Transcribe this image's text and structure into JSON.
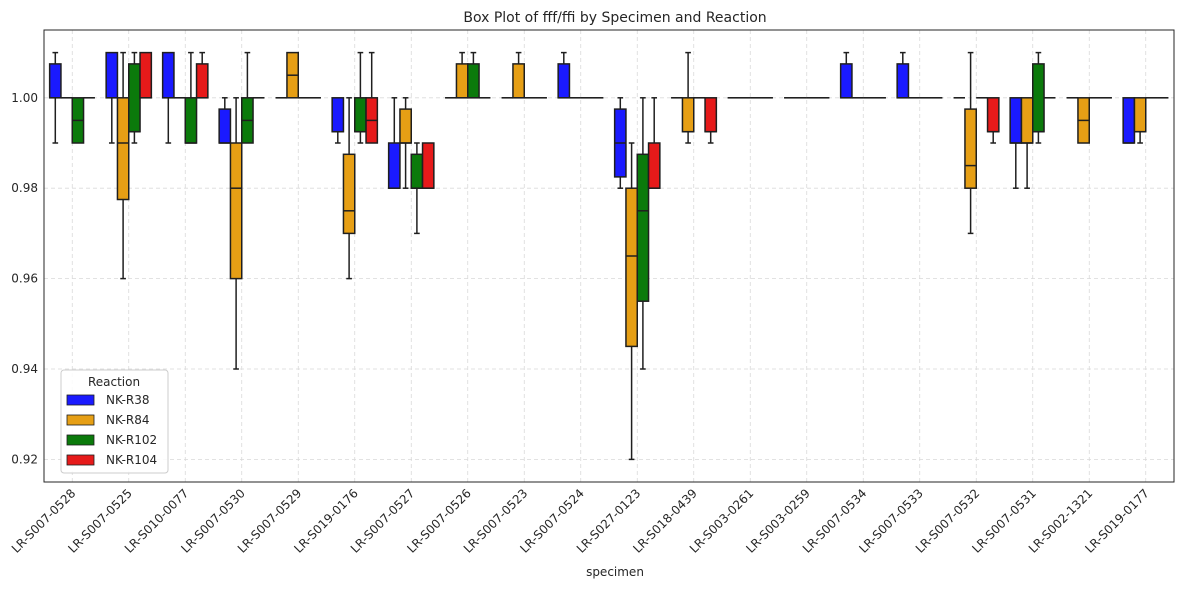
{
  "chart_data": {
    "type": "box",
    "title": "Box Plot of fff/ffi by Specimen and Reaction",
    "xlabel": "specimen",
    "ylabel": "",
    "ylim": [
      0.915,
      1.015
    ],
    "yticks": [
      0.92,
      0.94,
      0.96,
      0.98,
      1.0
    ],
    "ytick_labels": [
      "0.92",
      "0.94",
      "0.96",
      "0.98",
      "1.00"
    ],
    "grid": true,
    "legend": {
      "title": "Reaction",
      "placement": "lower-left"
    },
    "categories": [
      "LR-S007-0528",
      "LR-S007-0525",
      "LR-S010-0077",
      "LR-S007-0530",
      "LR-S007-0529",
      "LR-S019-0176",
      "LR-S007-0527",
      "LR-S007-0526",
      "LR-S007-0523",
      "LR-S007-0524",
      "LR-S027-0123",
      "LR-S018-0439",
      "LR-S003-0261",
      "LR-S003-0259",
      "LR-S007-0534",
      "LR-S007-0533",
      "LR-S007-0532",
      "LR-S007-0531",
      "LR-S002-1321",
      "LR-S019-0177"
    ],
    "series": [
      {
        "name": "NK-R38",
        "color": "#1a1aff",
        "boxes": [
          [
            0.99,
            1.0,
            1.0,
            1.0075,
            1.01
          ],
          [
            0.99,
            1.0,
            1.0,
            1.01,
            1.01
          ],
          [
            0.99,
            1.0,
            1.0,
            1.01,
            1.01
          ],
          [
            0.99,
            0.99,
            0.99,
            0.9975,
            1.0
          ],
          [
            1.0,
            1.0,
            1.0,
            1.0,
            1.0
          ],
          [
            0.99,
            0.9925,
            0.9925,
            1.0,
            1.0
          ],
          [
            0.98,
            0.98,
            0.98,
            0.99,
            1.0
          ],
          [
            1.0,
            1.0,
            1.0,
            1.0,
            1.0
          ],
          [
            1.0,
            1.0,
            1.0,
            1.0,
            1.0
          ],
          [
            1.0,
            1.0,
            1.0,
            1.0075,
            1.01
          ],
          [
            0.98,
            0.9825,
            0.99,
            0.9975,
            1.0
          ],
          [
            1.0,
            1.0,
            1.0,
            1.0,
            1.0
          ],
          [
            1.0,
            1.0,
            1.0,
            1.0,
            1.0
          ],
          [
            1.0,
            1.0,
            1.0,
            1.0,
            1.0
          ],
          [
            1.0,
            1.0,
            1.0,
            1.0075,
            1.01
          ],
          [
            1.0,
            1.0,
            1.0,
            1.0075,
            1.01
          ],
          [
            1.0,
            1.0,
            1.0,
            1.0,
            1.0
          ],
          [
            0.98,
            0.99,
            0.99,
            1.0,
            1.0
          ],
          [
            1.0,
            1.0,
            1.0,
            1.0,
            1.0
          ],
          [
            0.99,
            0.99,
            0.99,
            1.0,
            1.0
          ]
        ]
      },
      {
        "name": "NK-R84",
        "color": "#e69f15",
        "boxes": [
          [
            1.0,
            1.0,
            1.0,
            1.0,
            1.0
          ],
          [
            0.96,
            0.9775,
            0.99,
            1.0,
            1.01
          ],
          [
            1.0,
            1.0,
            1.0,
            1.0,
            1.0
          ],
          [
            0.94,
            0.96,
            0.98,
            0.99,
            1.0
          ],
          [
            1.0,
            1.0,
            1.005,
            1.01,
            1.01
          ],
          [
            0.96,
            0.97,
            0.975,
            0.9875,
            1.0
          ],
          [
            0.98,
            0.99,
            0.99,
            0.9975,
            1.0
          ],
          [
            1.0,
            1.0,
            1.0,
            1.0075,
            1.01
          ],
          [
            1.0,
            1.0,
            1.0,
            1.0075,
            1.01
          ],
          [
            1.0,
            1.0,
            1.0,
            1.0,
            1.0
          ],
          [
            0.92,
            0.945,
            0.965,
            0.98,
            0.99
          ],
          [
            0.99,
            0.9925,
            0.9925,
            1.0,
            1.01
          ],
          [
            1.0,
            1.0,
            1.0,
            1.0,
            1.0
          ],
          [
            1.0,
            1.0,
            1.0,
            1.0,
            1.0
          ],
          [
            1.0,
            1.0,
            1.0,
            1.0,
            1.0
          ],
          [
            1.0,
            1.0,
            1.0,
            1.0,
            1.0
          ],
          [
            0.97,
            0.98,
            0.985,
            0.9975,
            1.01
          ],
          [
            0.98,
            0.99,
            0.99,
            1.0,
            1.0
          ],
          [
            0.99,
            0.99,
            0.995,
            1.0,
            1.0
          ],
          [
            0.99,
            0.9925,
            0.9925,
            1.0,
            1.0
          ]
        ]
      },
      {
        "name": "NK-R102",
        "color": "#0b7a0b",
        "boxes": [
          [
            0.99,
            0.99,
            0.995,
            1.0,
            1.0
          ],
          [
            0.99,
            0.9925,
            0.9925,
            1.0075,
            1.01
          ],
          [
            0.99,
            0.99,
            0.99,
            1.0,
            1.01
          ],
          [
            0.99,
            0.99,
            0.995,
            1.0,
            1.01
          ],
          [
            1.0,
            1.0,
            1.0,
            1.0,
            1.0
          ],
          [
            0.99,
            0.9925,
            0.9925,
            1.0,
            1.01
          ],
          [
            0.97,
            0.98,
            0.98,
            0.9875,
            0.99
          ],
          [
            1.0,
            1.0,
            1.0,
            1.0075,
            1.01
          ],
          [
            1.0,
            1.0,
            1.0,
            1.0,
            1.0
          ],
          [
            1.0,
            1.0,
            1.0,
            1.0,
            1.0
          ],
          [
            0.94,
            0.955,
            0.975,
            0.9875,
            1.0
          ],
          [
            1.0,
            1.0,
            1.0,
            1.0,
            1.0
          ],
          [
            1.0,
            1.0,
            1.0,
            1.0,
            1.0
          ],
          [
            1.0,
            1.0,
            1.0,
            1.0,
            1.0
          ],
          [
            1.0,
            1.0,
            1.0,
            1.0,
            1.0
          ],
          [
            1.0,
            1.0,
            1.0,
            1.0,
            1.0
          ],
          [
            1.0,
            1.0,
            1.0,
            1.0,
            1.0
          ],
          [
            0.99,
            0.9925,
            0.9925,
            1.0075,
            1.01
          ],
          [
            1.0,
            1.0,
            1.0,
            1.0,
            1.0
          ],
          [
            1.0,
            1.0,
            1.0,
            1.0,
            1.0
          ]
        ]
      },
      {
        "name": "NK-R104",
        "color": "#e61a1a",
        "boxes": [
          [
            1.0,
            1.0,
            1.0,
            1.0,
            1.0
          ],
          [
            1.0,
            1.0,
            1.0,
            1.01,
            1.01
          ],
          [
            1.0,
            1.0,
            1.0,
            1.0075,
            1.01
          ],
          [
            1.0,
            1.0,
            1.0,
            1.0,
            1.0
          ],
          [
            1.0,
            1.0,
            1.0,
            1.0,
            1.0
          ],
          [
            0.99,
            0.99,
            0.995,
            1.0,
            1.01
          ],
          [
            0.98,
            0.98,
            0.98,
            0.99,
            0.99
          ],
          [
            1.0,
            1.0,
            1.0,
            1.0,
            1.0
          ],
          [
            1.0,
            1.0,
            1.0,
            1.0,
            1.0
          ],
          [
            1.0,
            1.0,
            1.0,
            1.0,
            1.0
          ],
          [
            0.98,
            0.98,
            0.98,
            0.99,
            1.0
          ],
          [
            0.99,
            0.9925,
            0.9925,
            1.0,
            1.0
          ],
          [
            1.0,
            1.0,
            1.0,
            1.0,
            1.0
          ],
          [
            1.0,
            1.0,
            1.0,
            1.0,
            1.0
          ],
          [
            1.0,
            1.0,
            1.0,
            1.0,
            1.0
          ],
          [
            1.0,
            1.0,
            1.0,
            1.0,
            1.0
          ],
          [
            0.99,
            0.9925,
            0.9925,
            1.0,
            1.0
          ],
          [
            1.0,
            1.0,
            1.0,
            1.0,
            1.0
          ],
          [
            1.0,
            1.0,
            1.0,
            1.0,
            1.0
          ],
          [
            1.0,
            1.0,
            1.0,
            1.0,
            1.0
          ]
        ]
      }
    ]
  }
}
